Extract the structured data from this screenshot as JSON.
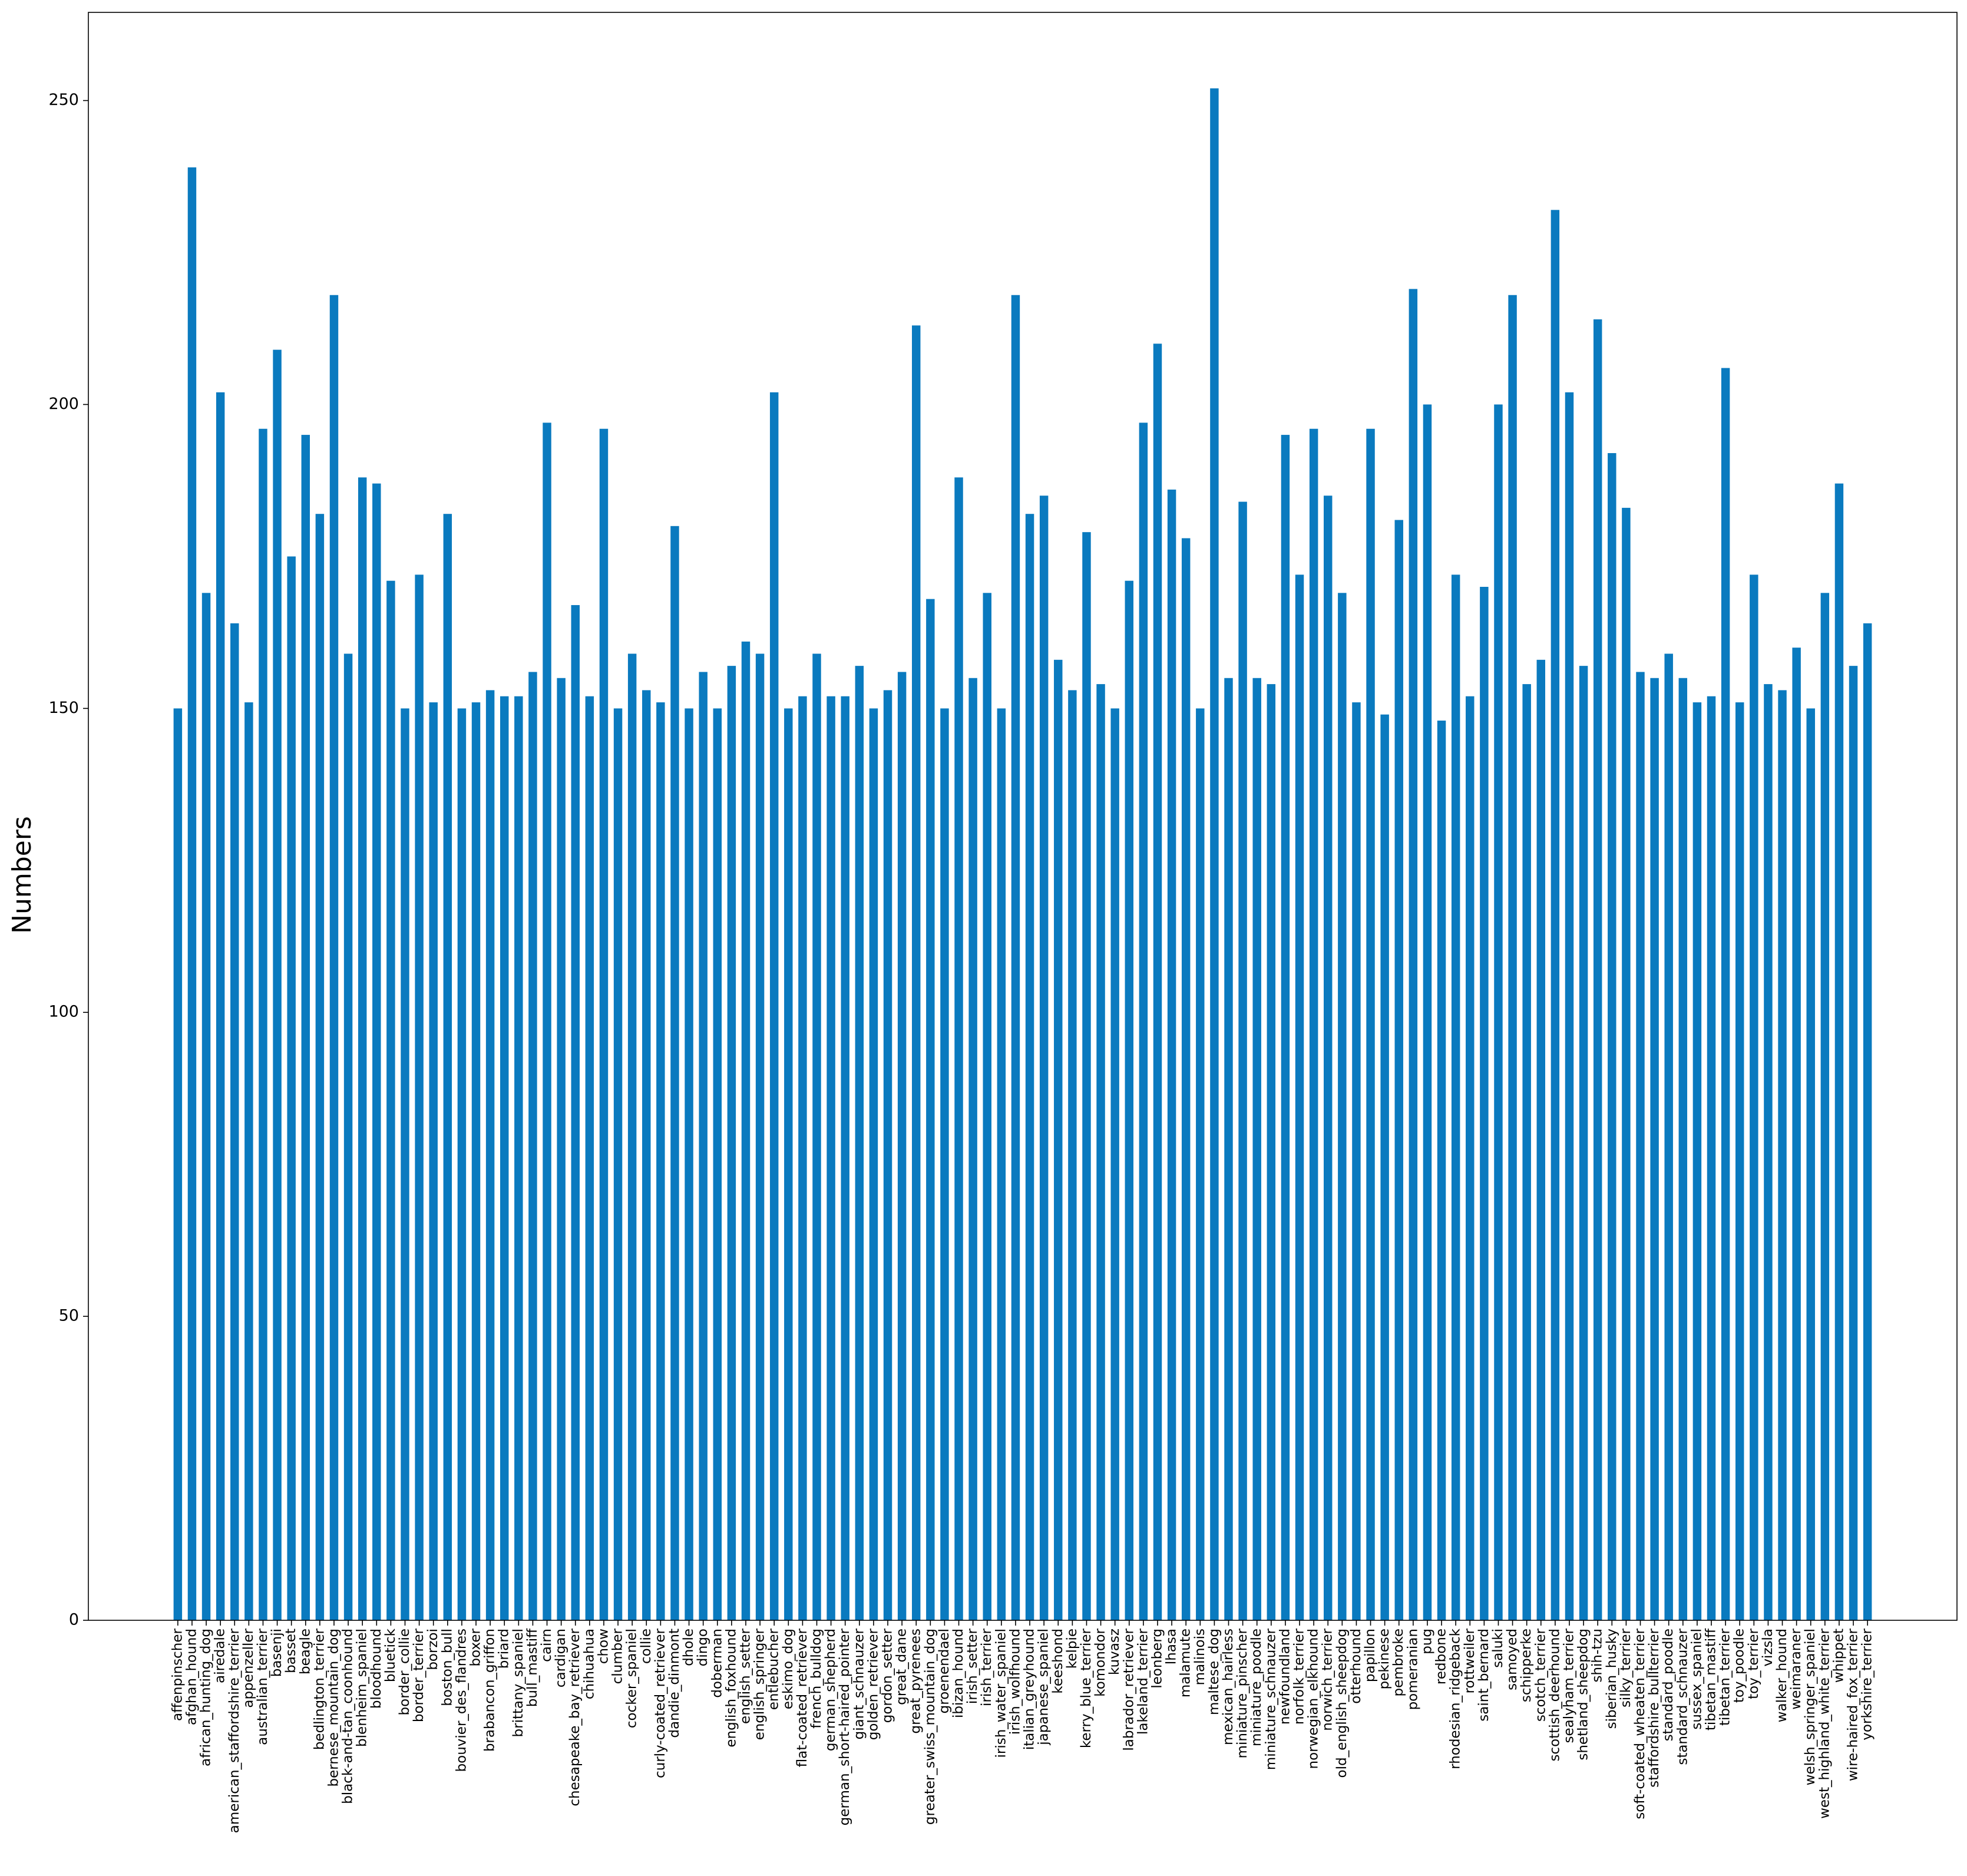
{
  "chart_data": {
    "type": "bar",
    "y_label": "Numbers",
    "categories": [
      "affenpinscher",
      "afghan_hound",
      "african_hunting_dog",
      "airedale",
      "american_staffordshire_terrier",
      "appenzeller",
      "australian_terrier",
      "basenji",
      "basset",
      "beagle",
      "bedlington_terrier",
      "bernese_mountain_dog",
      "black-and-tan_coonhound",
      "blenheim_spaniel",
      "bloodhound",
      "bluetick",
      "border_collie",
      "border_terrier",
      "borzoi",
      "boston_bull",
      "bouvier_des_flandres",
      "boxer",
      "brabancon_griffon",
      "briard",
      "brittany_spaniel",
      "bull_mastiff",
      "cairn",
      "cardigan",
      "chesapeake_bay_retriever",
      "chihuahua",
      "chow",
      "clumber",
      "cocker_spaniel",
      "collie",
      "curly-coated_retriever",
      "dandie_dinmont",
      "dhole",
      "dingo",
      "doberman",
      "english_foxhound",
      "english_setter",
      "english_springer",
      "entlebucher",
      "eskimo_dog",
      "flat-coated_retriever",
      "french_bulldog",
      "german_shepherd",
      "german_short-haired_pointer",
      "giant_schnauzer",
      "golden_retriever",
      "gordon_setter",
      "great_dane",
      "great_pyrenees",
      "greater_swiss_mountain_dog",
      "groenendael",
      "ibizan_hound",
      "irish_setter",
      "irish_terrier",
      "irish_water_spaniel",
      "irish_wolfhound",
      "italian_greyhound",
      "japanese_spaniel",
      "keeshond",
      "kelpie",
      "kerry_blue_terrier",
      "komondor",
      "kuvasz",
      "labrador_retriever",
      "lakeland_terrier",
      "leonberg",
      "lhasa",
      "malamute",
      "malinois",
      "maltese_dog",
      "mexican_hairless",
      "miniature_pinscher",
      "miniature_poodle",
      "miniature_schnauzer",
      "newfoundland",
      "norfolk_terrier",
      "norwegian_elkhound",
      "norwich_terrier",
      "old_english_sheepdog",
      "otterhound",
      "papillon",
      "pekinese",
      "pembroke",
      "pomeranian",
      "pug",
      "redbone",
      "rhodesian_ridgeback",
      "rottweiler",
      "saint_bernard",
      "saluki",
      "samoyed",
      "schipperke",
      "scotch_terrier",
      "scottish_deerhound",
      "sealyham_terrier",
      "shetland_sheepdog",
      "shih-tzu",
      "siberian_husky",
      "silky_terrier",
      "soft-coated_wheaten_terrier",
      "staffordshire_bullterrier",
      "standard_poodle",
      "standard_schnauzer",
      "sussex_spaniel",
      "tibetan_mastiff",
      "tibetan_terrier",
      "toy_poodle",
      "toy_terrier",
      "vizsla",
      "walker_hound",
      "weimaraner",
      "welsh_springer_spaniel",
      "west_highland_white_terrier",
      "whippet",
      "wire-haired_fox_terrier",
      "yorkshire_terrier"
    ],
    "values": [
      150,
      239,
      169,
      202,
      164,
      151,
      196,
      209,
      175,
      195,
      182,
      218,
      159,
      188,
      187,
      171,
      150,
      172,
      151,
      182,
      150,
      151,
      153,
      152,
      152,
      156,
      197,
      155,
      167,
      152,
      196,
      150,
      159,
      153,
      151,
      180,
      150,
      156,
      150,
      157,
      161,
      159,
      202,
      150,
      152,
      159,
      152,
      152,
      157,
      150,
      153,
      156,
      213,
      168,
      150,
      188,
      155,
      169,
      150,
      218,
      182,
      185,
      158,
      153,
      179,
      154,
      150,
      171,
      197,
      210,
      186,
      178,
      150,
      252,
      155,
      184,
      155,
      154,
      195,
      172,
      196,
      185,
      169,
      151,
      196,
      149,
      181,
      219,
      200,
      148,
      172,
      152,
      170,
      200,
      218,
      154,
      158,
      232,
      202,
      157,
      214,
      192,
      183,
      156,
      155,
      159,
      155,
      151,
      152,
      206,
      151,
      172,
      154,
      153,
      160,
      150,
      169,
      187,
      157,
      164
    ],
    "color": "#0a7abf",
    "ylim": [
      0,
      264.5
    ],
    "yticks": [
      0,
      50,
      100,
      150,
      200,
      250
    ]
  }
}
